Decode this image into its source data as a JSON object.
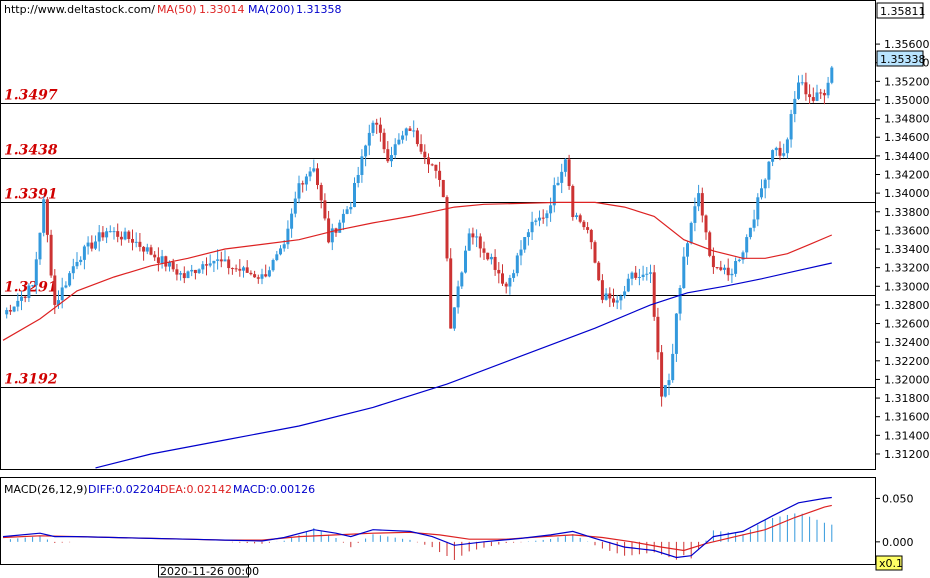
{
  "header": {
    "url": "http://www.deltastock.com/",
    "ma50_label": "MA(50)",
    "ma50_value": "1.33014",
    "ma200_label": "MA(200)",
    "ma200_value": "1.31358"
  },
  "macd_header": {
    "title": "MACD(26,12,9)",
    "diff": "DIFF:0.02204",
    "dea": "DEA:0.02142",
    "macd": "MACD:0.00126"
  },
  "top_price_label": "1.35811",
  "current_price_label": "1.35338",
  "crosshair_time_label": "2020-11-26 00:00",
  "zoom_label": "x0.1",
  "colors": {
    "bull": "#3399dd",
    "bear": "#cc3333",
    "ma50": "#dd2222",
    "ma200": "#0000cc",
    "level_text": "#d00000",
    "diff": "#0000cc",
    "dea": "#dd2222"
  },
  "chart_data": [
    {
      "type": "candlestick",
      "y_axis_ticks": [
        "1.35600",
        "1.35400",
        "1.35200",
        "1.35000",
        "1.34800",
        "1.34600",
        "1.34400",
        "1.34200",
        "1.34000",
        "1.33800",
        "1.33600",
        "1.33400",
        "1.33200",
        "1.33000",
        "1.32800",
        "1.32600",
        "1.32400",
        "1.32200",
        "1.32000",
        "1.31800",
        "1.31600",
        "1.31400",
        "1.31200"
      ],
      "ylim": [
        1.3106,
        1.3588
      ],
      "levels": [
        {
          "label": "1.3497",
          "value": 1.3497
        },
        {
          "label": "1.3438",
          "value": 1.3438
        },
        {
          "label": "1.3391",
          "value": 1.3391
        },
        {
          "label": "1.3291",
          "value": 1.3291
        },
        {
          "label": "1.3192",
          "value": 1.3192
        }
      ],
      "anchors": [
        [
          0,
          1.327
        ],
        [
          8,
          1.33
        ],
        [
          11,
          1.339
        ],
        [
          14,
          1.328
        ],
        [
          20,
          1.333
        ],
        [
          28,
          1.336
        ],
        [
          35,
          1.335
        ],
        [
          42,
          1.333
        ],
        [
          49,
          1.331
        ],
        [
          56,
          1.333
        ],
        [
          62,
          1.332
        ],
        [
          70,
          1.331
        ],
        [
          76,
          1.334
        ],
        [
          80,
          1.341
        ],
        [
          84,
          1.343
        ],
        [
          88,
          1.335
        ],
        [
          94,
          1.339
        ],
        [
          100,
          1.348
        ],
        [
          104,
          1.344
        ],
        [
          110,
          1.347
        ],
        [
          116,
          1.343
        ],
        [
          119,
          1.34
        ],
        [
          121,
          1.326
        ],
        [
          126,
          1.336
        ],
        [
          132,
          1.333
        ],
        [
          136,
          1.33
        ],
        [
          142,
          1.336
        ],
        [
          147,
          1.338
        ],
        [
          152,
          1.344
        ],
        [
          154,
          1.338
        ],
        [
          158,
          1.336
        ],
        [
          162,
          1.329
        ],
        [
          166,
          1.328
        ],
        [
          170,
          1.331
        ],
        [
          175,
          1.331
        ],
        [
          178,
          1.318
        ],
        [
          180,
          1.32
        ],
        [
          184,
          1.333
        ],
        [
          188,
          1.34
        ],
        [
          191,
          1.333
        ],
        [
          196,
          1.331
        ],
        [
          200,
          1.334
        ],
        [
          204,
          1.339
        ],
        [
          208,
          1.345
        ],
        [
          211,
          1.344
        ],
        [
          215,
          1.352
        ],
        [
          219,
          1.35
        ],
        [
          222,
          1.351
        ],
        [
          224,
          1.3535
        ]
      ],
      "ma50": [
        [
          0,
          1.3242
        ],
        [
          10,
          1.3265
        ],
        [
          20,
          1.3295
        ],
        [
          30,
          1.331
        ],
        [
          40,
          1.3322
        ],
        [
          50,
          1.333
        ],
        [
          60,
          1.334
        ],
        [
          70,
          1.3345
        ],
        [
          80,
          1.335
        ],
        [
          90,
          1.336
        ],
        [
          100,
          1.3368
        ],
        [
          110,
          1.3375
        ],
        [
          116,
          1.338
        ],
        [
          122,
          1.3385
        ],
        [
          130,
          1.3388
        ],
        [
          140,
          1.3389
        ],
        [
          150,
          1.339
        ],
        [
          160,
          1.339
        ],
        [
          168,
          1.3385
        ],
        [
          176,
          1.3375
        ],
        [
          184,
          1.335
        ],
        [
          192,
          1.3338
        ],
        [
          200,
          1.333
        ],
        [
          206,
          1.333
        ],
        [
          212,
          1.3335
        ],
        [
          218,
          1.3345
        ],
        [
          224,
          1.3355
        ]
      ],
      "ma200": [
        [
          25,
          1.3105
        ],
        [
          40,
          1.312
        ],
        [
          60,
          1.3135
        ],
        [
          80,
          1.315
        ],
        [
          100,
          1.317
        ],
        [
          120,
          1.3195
        ],
        [
          140,
          1.3225
        ],
        [
          160,
          1.3255
        ],
        [
          175,
          1.328
        ],
        [
          185,
          1.3293
        ],
        [
          195,
          1.33
        ],
        [
          205,
          1.3308
        ],
        [
          215,
          1.3317
        ],
        [
          224,
          1.3325
        ]
      ]
    },
    {
      "type": "macd",
      "y_axis_ticks": [
        "0.050",
        "0.000"
      ],
      "ylim": [
        -0.0255,
        0.0735
      ],
      "diff": [
        [
          0,
          0.006
        ],
        [
          10,
          0.01
        ],
        [
          14,
          0.006
        ],
        [
          20,
          0.006
        ],
        [
          30,
          0.005
        ],
        [
          40,
          0.004
        ],
        [
          50,
          0.003
        ],
        [
          60,
          0.002
        ],
        [
          70,
          0.001
        ],
        [
          76,
          0.005
        ],
        [
          84,
          0.014
        ],
        [
          90,
          0.01
        ],
        [
          94,
          0.006
        ],
        [
          100,
          0.014
        ],
        [
          110,
          0.012
        ],
        [
          116,
          0.006
        ],
        [
          122,
          -0.004
        ],
        [
          130,
          0.0
        ],
        [
          140,
          0.004
        ],
        [
          148,
          0.008
        ],
        [
          154,
          0.012
        ],
        [
          160,
          0.004
        ],
        [
          168,
          -0.006
        ],
        [
          176,
          -0.01
        ],
        [
          182,
          -0.018
        ],
        [
          186,
          -0.016
        ],
        [
          192,
          0.006
        ],
        [
          200,
          0.012
        ],
        [
          208,
          0.03
        ],
        [
          215,
          0.045
        ],
        [
          222,
          0.05
        ],
        [
          224,
          0.051
        ]
      ],
      "dea": [
        [
          0,
          0.005
        ],
        [
          10,
          0.007
        ],
        [
          20,
          0.006
        ],
        [
          30,
          0.005
        ],
        [
          40,
          0.004
        ],
        [
          50,
          0.003
        ],
        [
          60,
          0.002
        ],
        [
          70,
          0.002
        ],
        [
          80,
          0.006
        ],
        [
          90,
          0.008
        ],
        [
          100,
          0.01
        ],
        [
          110,
          0.011
        ],
        [
          118,
          0.008
        ],
        [
          126,
          0.003
        ],
        [
          136,
          0.003
        ],
        [
          146,
          0.006
        ],
        [
          154,
          0.008
        ],
        [
          162,
          0.005
        ],
        [
          170,
          0.0
        ],
        [
          178,
          -0.006
        ],
        [
          184,
          -0.01
        ],
        [
          190,
          -0.002
        ],
        [
          198,
          0.006
        ],
        [
          206,
          0.014
        ],
        [
          214,
          0.028
        ],
        [
          222,
          0.04
        ],
        [
          224,
          0.042
        ]
      ]
    }
  ]
}
